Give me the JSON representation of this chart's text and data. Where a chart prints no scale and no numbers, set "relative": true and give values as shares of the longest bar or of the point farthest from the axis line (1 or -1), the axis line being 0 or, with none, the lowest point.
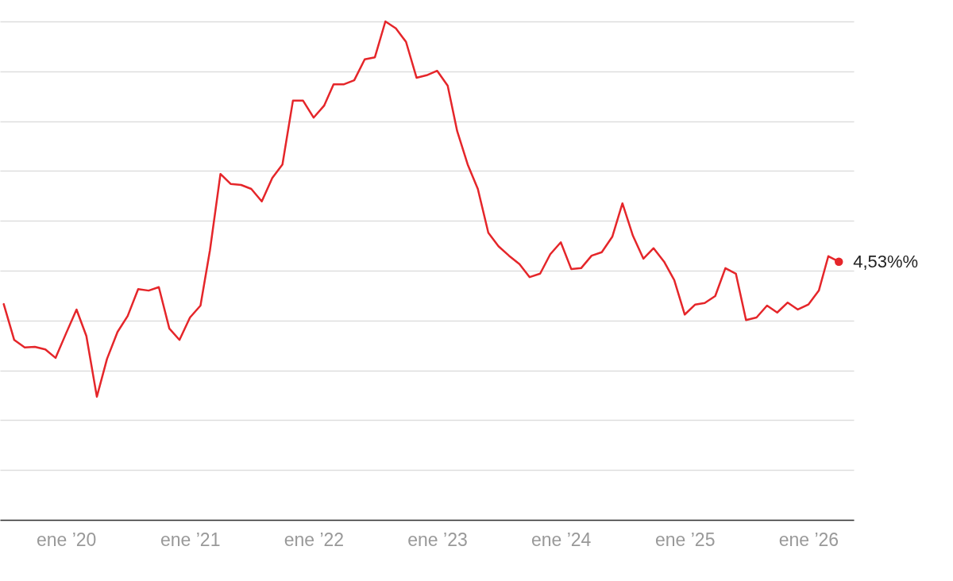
{
  "chart_data": {
    "type": "line",
    "relative": true,
    "color": "#e5262a",
    "grid": "y",
    "tick_labels": "x",
    "marker": "none",
    "line_style": "solid",
    "annotations": [
      {
        "text": "4,53%%",
        "x": "2026-04",
        "y": 0.518
      }
    ],
    "x": [
      "2019-07",
      "2019-08",
      "2019-09",
      "2019-10",
      "2019-11",
      "2019-12",
      "2020-01",
      "2020-02",
      "2020-03",
      "2020-04",
      "2020-05",
      "2020-06",
      "2020-07",
      "2020-08",
      "2020-09",
      "2020-10",
      "2020-11",
      "2020-12",
      "2021-01",
      "2021-02",
      "2021-03",
      "2021-04",
      "2021-05",
      "2021-06",
      "2021-07",
      "2021-08",
      "2021-09",
      "2021-10",
      "2021-11",
      "2021-12",
      "2022-01",
      "2022-02",
      "2022-03",
      "2022-04",
      "2022-05",
      "2022-06",
      "2022-07",
      "2022-08",
      "2022-09",
      "2022-10",
      "2022-11",
      "2022-12",
      "2023-01",
      "2023-02",
      "2023-03",
      "2023-04",
      "2023-05",
      "2023-06",
      "2023-07",
      "2023-08",
      "2023-09",
      "2023-10",
      "2023-11",
      "2023-12",
      "2024-01",
      "2024-02",
      "2024-03",
      "2024-04",
      "2024-05",
      "2024-06",
      "2024-07",
      "2024-08",
      "2024-09",
      "2024-10",
      "2024-11",
      "2024-12",
      "2025-01",
      "2025-02",
      "2025-03",
      "2025-04",
      "2025-05",
      "2025-06",
      "2025-07",
      "2025-08",
      "2025-09",
      "2025-10",
      "2025-11",
      "2025-12",
      "2026-01",
      "2026-02",
      "2026-03",
      "2026-04"
    ],
    "values": [
      0.433,
      0.361,
      0.346,
      0.347,
      0.342,
      0.325,
      0.374,
      0.422,
      0.369,
      0.247,
      0.323,
      0.377,
      0.409,
      0.463,
      0.46,
      0.467,
      0.384,
      0.361,
      0.406,
      0.43,
      0.541,
      0.694,
      0.674,
      0.672,
      0.664,
      0.639,
      0.686,
      0.713,
      0.841,
      0.841,
      0.807,
      0.831,
      0.874,
      0.874,
      0.882,
      0.924,
      0.928,
      1,
      0.986,
      0.959,
      0.887,
      0.892,
      0.901,
      0.871,
      0.78,
      0.713,
      0.664,
      0.576,
      0.549,
      0.53,
      0.513,
      0.487,
      0.494,
      0.533,
      0.557,
      0.503,
      0.505,
      0.53,
      0.537,
      0.568,
      0.635,
      0.57,
      0.524,
      0.545,
      0.518,
      0.481,
      0.412,
      0.432,
      0.435,
      0.449,
      0.505,
      0.494,
      0.401,
      0.406,
      0.43,
      0.416,
      0.436,
      0.422,
      0.432,
      0.46,
      0.529,
      0.518
    ],
    "xlim": [
      "2019-06-20",
      "2026-05-15"
    ],
    "xticks": [
      {
        "value": "2020-01",
        "label": "ene ’20"
      },
      {
        "value": "2021-01",
        "label": "ene ’21"
      },
      {
        "value": "2022-01",
        "label": "ene ’22"
      },
      {
        "value": "2023-01",
        "label": "ene ’23"
      },
      {
        "value": "2024-01",
        "label": "ene ’24"
      },
      {
        "value": "2025-01",
        "label": "ene ’25"
      },
      {
        "value": "2026-01",
        "label": "ene ’26"
      }
    ]
  }
}
